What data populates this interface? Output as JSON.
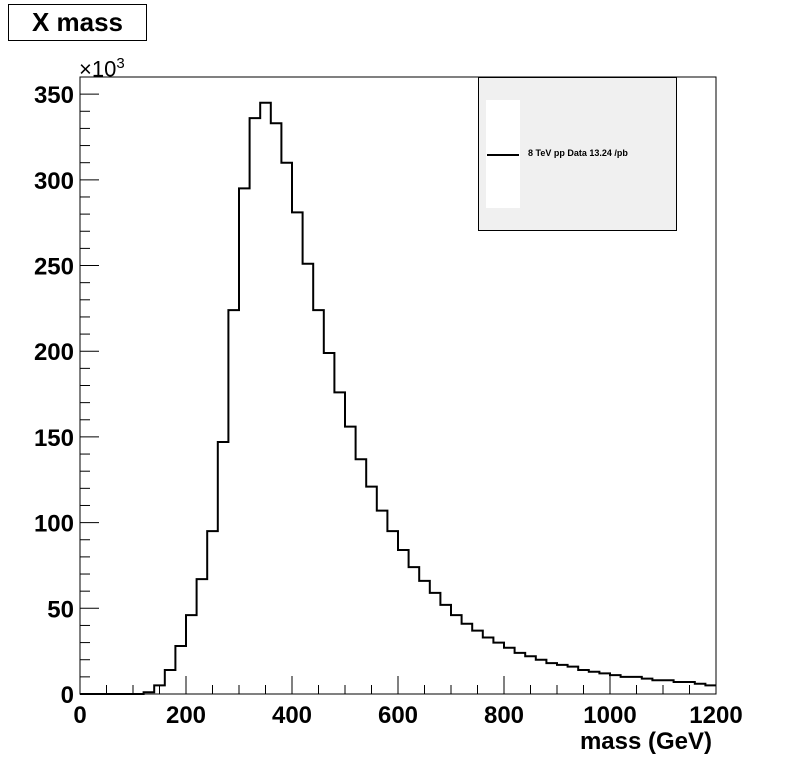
{
  "chart_data": {
    "type": "histogram",
    "title": "X mass",
    "xlabel": "mass (GeV)",
    "ylabel": "",
    "y_multiplier": "×10",
    "y_multiplier_exp": "3",
    "xlim": [
      0,
      1200
    ],
    "ylim": [
      0,
      360
    ],
    "x_ticks": [
      0,
      200,
      400,
      600,
      800,
      1000,
      1200
    ],
    "y_ticks": [
      0,
      50,
      100,
      150,
      200,
      250,
      300,
      350
    ],
    "bin_width": 20,
    "bin_edges_start": 0,
    "values": [
      0,
      0,
      0,
      0,
      0,
      0,
      1,
      5,
      14,
      28,
      46,
      67,
      95,
      147,
      224,
      295,
      336,
      345,
      333,
      310,
      281,
      251,
      224,
      199,
      176,
      156,
      137,
      121,
      107,
      95,
      84,
      74,
      66,
      59,
      52,
      46,
      41,
      37,
      33,
      30,
      27,
      24,
      22,
      20,
      18,
      17,
      16,
      14,
      13,
      12,
      11,
      10,
      10,
      9,
      8,
      8,
      7,
      7,
      6,
      5
    ],
    "legend": {
      "label": "8 TeV pp Data 13.24 /pb",
      "position": "top-right"
    },
    "grid": false
  },
  "colors": {
    "line": "#000000",
    "legend_bg": "#f0f0f0"
  }
}
